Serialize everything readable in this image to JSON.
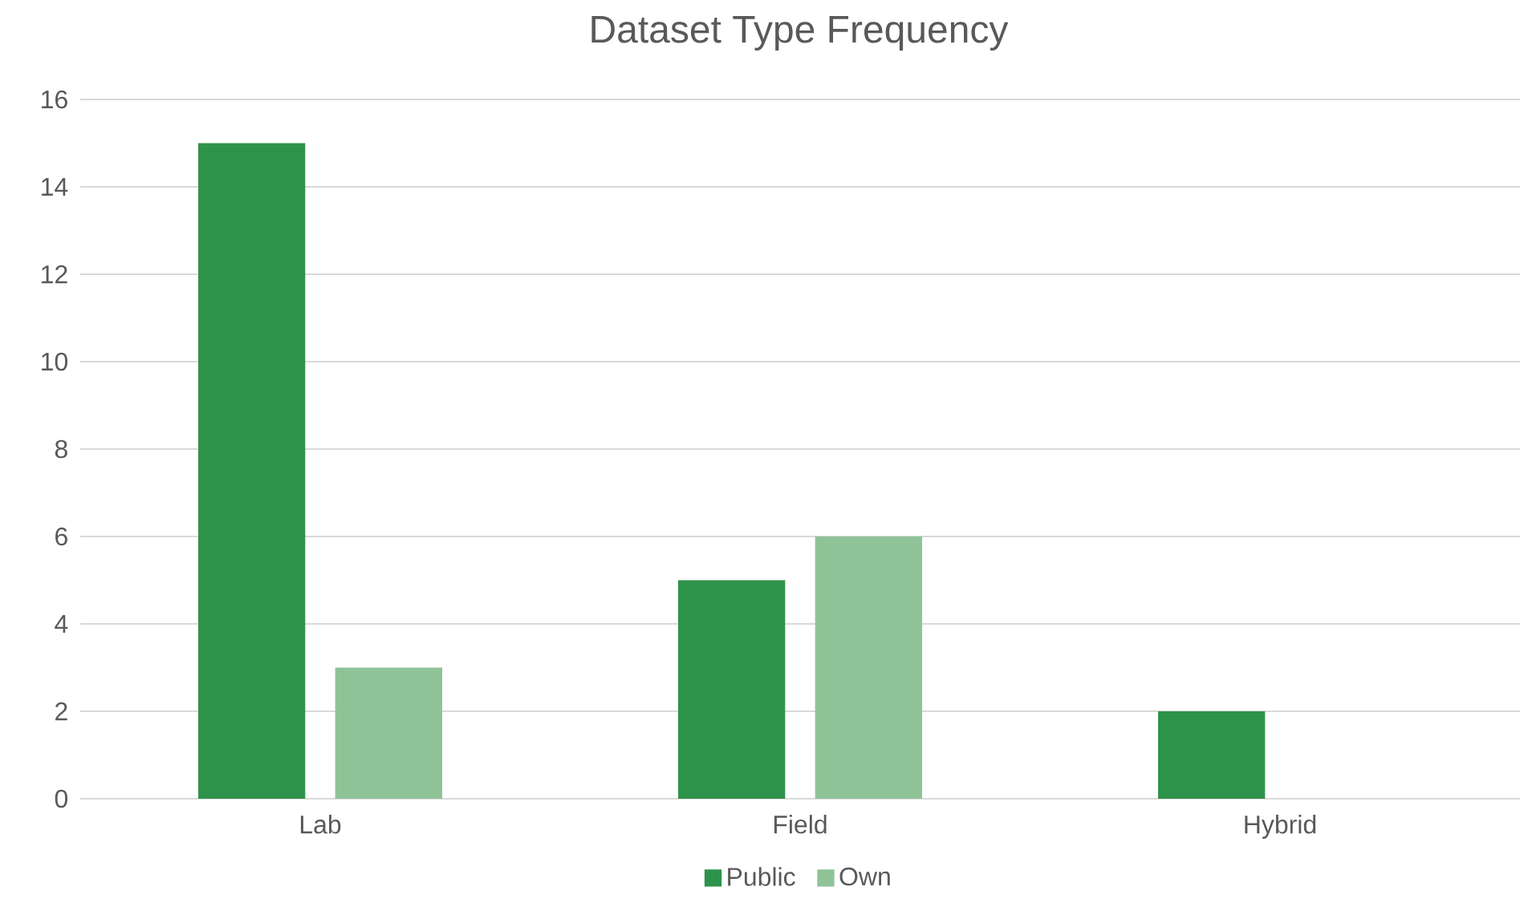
{
  "chart_data": {
    "type": "bar",
    "title": "Dataset Type Frequency",
    "categories": [
      "Lab",
      "Field",
      "Hybrid"
    ],
    "series": [
      {
        "name": "Public",
        "color": "#2e934a",
        "values": [
          15,
          5,
          2
        ]
      },
      {
        "name": "Own",
        "color": "#8fc397",
        "values": [
          3,
          6,
          0
        ]
      }
    ],
    "ylim": [
      0,
      16
    ],
    "yticks": [
      0,
      2,
      4,
      6,
      8,
      10,
      12,
      14,
      16
    ],
    "grid": "y",
    "legend": "bottom"
  }
}
